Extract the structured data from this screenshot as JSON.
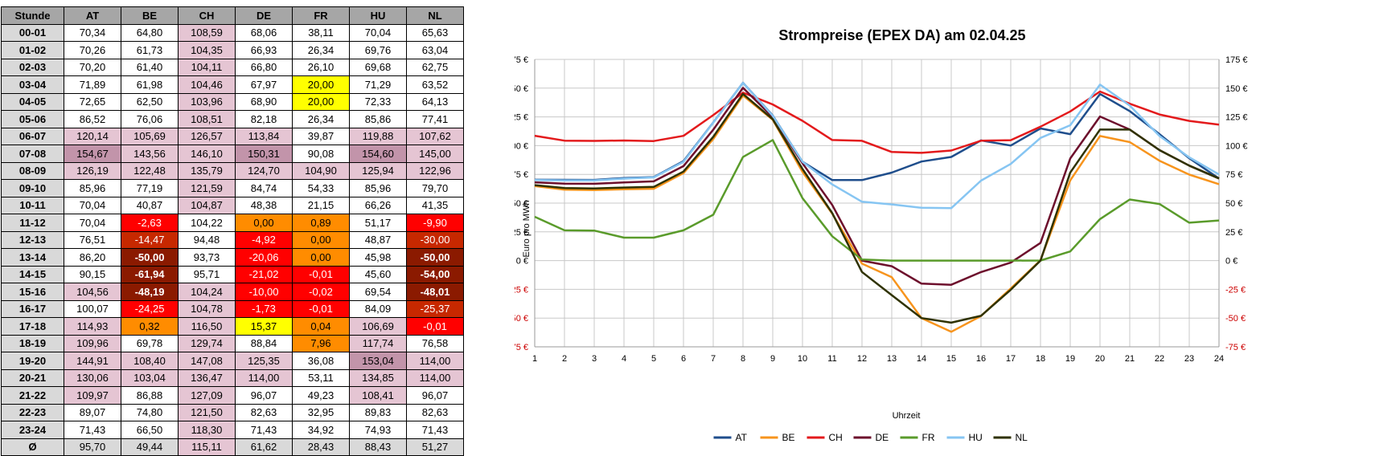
{
  "table": {
    "columns": [
      "Stunde",
      "AT",
      "BE",
      "CH",
      "DE",
      "FR",
      "HU",
      "NL"
    ],
    "rows": [
      [
        "00-01",
        "70,34",
        "64,80",
        "108,59",
        "68,06",
        "38,11",
        "70,04",
        "65,63"
      ],
      [
        "01-02",
        "70,26",
        "61,73",
        "104,35",
        "66,93",
        "26,34",
        "69,76",
        "63,04"
      ],
      [
        "02-03",
        "70,20",
        "61,40",
        "104,11",
        "66,80",
        "26,10",
        "69,68",
        "62,75"
      ],
      [
        "03-04",
        "71,89",
        "61,98",
        "104,46",
        "67,97",
        "20,00",
        "71,29",
        "63,52"
      ],
      [
        "04-05",
        "72,65",
        "62,50",
        "103,96",
        "68,90",
        "20,00",
        "72,33",
        "64,13"
      ],
      [
        "05-06",
        "86,52",
        "76,06",
        "108,51",
        "82,18",
        "26,34",
        "85,86",
        "77,41"
      ],
      [
        "06-07",
        "120,14",
        "105,69",
        "126,57",
        "113,84",
        "39,87",
        "119,88",
        "107,62"
      ],
      [
        "07-08",
        "154,67",
        "143,56",
        "146,10",
        "150,31",
        "90,08",
        "154,60",
        "145,00"
      ],
      [
        "08-09",
        "126,19",
        "122,48",
        "135,79",
        "124,70",
        "104,90",
        "125,94",
        "122,96"
      ],
      [
        "09-10",
        "85,96",
        "77,19",
        "121,59",
        "84,74",
        "54,33",
        "85,96",
        "79,70"
      ],
      [
        "10-11",
        "70,04",
        "40,87",
        "104,87",
        "48,38",
        "21,15",
        "66,26",
        "41,35"
      ],
      [
        "11-12",
        "70,04",
        "-2,63",
        "104,22",
        "0,00",
        "0,89",
        "51,17",
        "-9,90"
      ],
      [
        "12-13",
        "76,51",
        "-14,47",
        "94,48",
        "-4,92",
        "0,00",
        "48,87",
        "-30,00"
      ],
      [
        "13-14",
        "86,20",
        "-50,00",
        "93,73",
        "-20,06",
        "0,00",
        "45,98",
        "-50,00"
      ],
      [
        "14-15",
        "90,15",
        "-61,94",
        "95,71",
        "-21,02",
        "-0,01",
        "45,60",
        "-54,00"
      ],
      [
        "15-16",
        "104,56",
        "-48,19",
        "104,24",
        "-10,00",
        "-0,02",
        "69,54",
        "-48,01"
      ],
      [
        "16-17",
        "100,07",
        "-24,25",
        "104,78",
        "-1,73",
        "-0,01",
        "84,09",
        "-25,37"
      ],
      [
        "17-18",
        "114,93",
        "0,32",
        "116,50",
        "15,37",
        "0,04",
        "106,69",
        "-0,01"
      ],
      [
        "18-19",
        "109,96",
        "69,78",
        "129,74",
        "88,84",
        "7,96",
        "117,74",
        "76,58"
      ],
      [
        "19-20",
        "144,91",
        "108,40",
        "147,08",
        "125,35",
        "36,08",
        "153,04",
        "114,00"
      ],
      [
        "20-21",
        "130,06",
        "103,04",
        "136,47",
        "114,00",
        "53,11",
        "134,85",
        "114,00"
      ],
      [
        "21-22",
        "109,97",
        "86,88",
        "127,09",
        "96,07",
        "49,23",
        "108,41",
        "96,07"
      ],
      [
        "22-23",
        "89,07",
        "74,80",
        "121,50",
        "82,63",
        "32,95",
        "89,83",
        "82,63"
      ],
      [
        "23-24",
        "71,43",
        "66,50",
        "118,30",
        "71,43",
        "34,92",
        "74,93",
        "71,43"
      ],
      [
        "Ø",
        "95,70",
        "49,44",
        "115,11",
        "61,62",
        "28,43",
        "88,43",
        "51,27"
      ]
    ],
    "cell_colors": [
      [
        "",
        "",
        "c-hi",
        "",
        "",
        "",
        ""
      ],
      [
        "",
        "",
        "c-hi",
        "",
        "",
        "",
        ""
      ],
      [
        "",
        "",
        "c-hi",
        "",
        "",
        "",
        ""
      ],
      [
        "",
        "",
        "c-hi",
        "",
        "c-y",
        "",
        ""
      ],
      [
        "",
        "",
        "c-hi",
        "",
        "c-y",
        "",
        ""
      ],
      [
        "",
        "",
        "c-hi",
        "",
        "",
        "",
        ""
      ],
      [
        "c-hi",
        "c-hi",
        "c-hi",
        "c-hi",
        "",
        "c-hi",
        "c-hi"
      ],
      [
        "c-vhi",
        "c-hi",
        "c-hi",
        "c-vhi",
        "",
        "c-vhi",
        "c-hi"
      ],
      [
        "c-hi",
        "c-hi",
        "c-hi",
        "c-hi",
        "c-hi",
        "c-hi",
        "c-hi"
      ],
      [
        "",
        "",
        "c-hi",
        "",
        "",
        "",
        ""
      ],
      [
        "",
        "",
        "c-hi",
        "",
        "",
        "",
        ""
      ],
      [
        "",
        "c-r",
        "",
        "c-o",
        "c-o",
        "",
        "c-r"
      ],
      [
        "",
        "c-dr",
        "",
        "c-r",
        "c-o",
        "",
        "c-dr"
      ],
      [
        "",
        "c-x",
        "",
        "c-r",
        "c-o",
        "",
        "c-x"
      ],
      [
        "",
        "c-x",
        "",
        "c-r",
        "c-r",
        "",
        "c-x"
      ],
      [
        "c-hi",
        "c-x",
        "c-hi",
        "c-r",
        "c-r",
        "",
        "c-x"
      ],
      [
        "",
        "c-r",
        "c-hi",
        "c-r",
        "c-r",
        "",
        "c-dr"
      ],
      [
        "c-hi",
        "c-o",
        "c-hi",
        "c-y",
        "c-o",
        "c-hi",
        "c-r"
      ],
      [
        "c-hi",
        "",
        "c-hi",
        "",
        "c-o",
        "c-hi",
        ""
      ],
      [
        "c-hi",
        "c-hi",
        "c-hi",
        "c-hi",
        "",
        "c-vhi",
        "c-hi"
      ],
      [
        "c-hi",
        "c-hi",
        "c-hi",
        "c-hi",
        "",
        "c-hi",
        "c-hi"
      ],
      [
        "c-hi",
        "",
        "c-hi",
        "",
        "",
        "c-hi",
        ""
      ],
      [
        "",
        "",
        "c-hi",
        "",
        "",
        "",
        ""
      ],
      [
        "",
        "",
        "c-hi",
        "",
        "",
        "",
        ""
      ],
      [
        "",
        "",
        "c-hi",
        "",
        "",
        "",
        ""
      ]
    ]
  },
  "chart_data": {
    "type": "line",
    "title": "Strompreise (EPEX DA) am 02.04.25",
    "xlabel": "Uhrzeit",
    "ylabel": "Euro pro MWh",
    "x": [
      1,
      2,
      3,
      4,
      5,
      6,
      7,
      8,
      9,
      10,
      11,
      12,
      13,
      14,
      15,
      16,
      17,
      18,
      19,
      20,
      21,
      22,
      23,
      24
    ],
    "ylim": [
      -75,
      175
    ],
    "yticks": [
      -75,
      -50,
      -25,
      0,
      25,
      50,
      75,
      100,
      125,
      150,
      175
    ],
    "ytick_labels": [
      "-75 €",
      "-50 €",
      "-25 €",
      "0 €",
      "25 €",
      "50 €",
      "75 €",
      "100 €",
      "125 €",
      "150 €",
      "175 €"
    ],
    "grid": true,
    "legend_position": "bottom",
    "series": [
      {
        "name": "AT",
        "color": "#1f4e8c",
        "values": [
          70.34,
          70.26,
          70.2,
          71.89,
          72.65,
          86.52,
          120.14,
          154.67,
          126.19,
          85.96,
          70.04,
          70.04,
          76.51,
          86.2,
          90.15,
          104.56,
          100.07,
          114.93,
          109.96,
          144.91,
          130.06,
          109.97,
          89.07,
          71.43
        ]
      },
      {
        "name": "BE",
        "color": "#f7941d",
        "values": [
          64.8,
          61.73,
          61.4,
          61.98,
          62.5,
          76.06,
          105.69,
          143.56,
          122.48,
          77.19,
          40.87,
          -2.63,
          -14.47,
          -50.0,
          -61.94,
          -48.19,
          -24.25,
          0.32,
          69.78,
          108.4,
          103.04,
          86.88,
          74.8,
          66.5
        ]
      },
      {
        "name": "CH",
        "color": "#e31a1c",
        "values": [
          108.59,
          104.35,
          104.11,
          104.46,
          103.96,
          108.51,
          126.57,
          146.1,
          135.79,
          121.59,
          104.87,
          104.22,
          94.48,
          93.73,
          95.71,
          104.24,
          104.78,
          116.5,
          129.74,
          147.08,
          136.47,
          127.09,
          121.5,
          118.3
        ]
      },
      {
        "name": "DE",
        "color": "#6d0f2c",
        "values": [
          68.06,
          66.93,
          66.8,
          67.97,
          68.9,
          82.18,
          113.84,
          150.31,
          124.7,
          84.74,
          48.38,
          0.0,
          -4.92,
          -20.06,
          -21.02,
          -10.0,
          -1.73,
          15.37,
          88.84,
          125.35,
          114.0,
          96.07,
          82.63,
          71.43
        ]
      },
      {
        "name": "FR",
        "color": "#5a9b2b",
        "values": [
          38.11,
          26.34,
          26.1,
          20.0,
          20.0,
          26.34,
          39.87,
          90.08,
          104.9,
          54.33,
          21.15,
          0.89,
          0.0,
          0.0,
          -0.01,
          -0.02,
          -0.01,
          0.04,
          7.96,
          36.08,
          53.11,
          49.23,
          32.95,
          34.92
        ]
      },
      {
        "name": "HU",
        "color": "#86c5f2",
        "values": [
          70.04,
          69.76,
          69.68,
          71.29,
          72.33,
          85.86,
          119.88,
          154.6,
          125.94,
          85.96,
          66.26,
          51.17,
          48.87,
          45.98,
          45.6,
          69.54,
          84.09,
          106.69,
          117.74,
          153.04,
          134.85,
          108.41,
          89.83,
          74.93
        ]
      },
      {
        "name": "NL",
        "color": "#2f3200",
        "values": [
          65.63,
          63.04,
          62.75,
          63.52,
          64.13,
          77.41,
          107.62,
          145.0,
          122.96,
          79.7,
          41.35,
          -9.9,
          -30.0,
          -50.0,
          -54.0,
          -48.01,
          -25.37,
          -0.01,
          76.58,
          114.0,
          114.0,
          96.07,
          82.63,
          71.43
        ]
      }
    ]
  }
}
